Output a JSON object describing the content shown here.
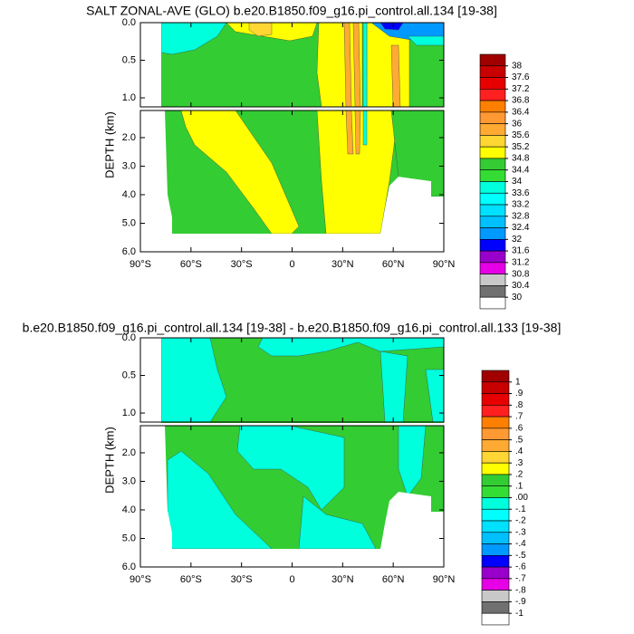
{
  "chart_data": [
    {
      "type": "contour",
      "title": "SALT ZONAL-AVE (GLO) b.e20.B1850.f09_g16.pi_control.all.134 [19-38]",
      "ylabel": "DEPTH (km)",
      "xlim": [
        -90,
        90
      ],
      "xticks": [
        {
          "value": -90,
          "label": "90°S"
        },
        {
          "value": -60,
          "label": "60°S"
        },
        {
          "value": -30,
          "label": "30°S"
        },
        0,
        {
          "value": 30,
          "label": "30°N"
        },
        {
          "value": 60,
          "label": "60°N"
        },
        {
          "value": 90,
          "label": "90°N"
        }
      ],
      "panels": [
        {
          "ylim": [
            0,
            1.12
          ],
          "yticks": [
            {
              "value": 0,
              "label": "0.0"
            },
            0.5,
            {
              "value": 1,
              "label": "1.0"
            }
          ]
        },
        {
          "ylim": [
            1.05,
            6
          ],
          "yticks": [
            {
              "value": 2,
              "label": "2.0"
            },
            {
              "value": 3,
              "label": "3.0"
            },
            {
              "value": 4,
              "label": "4.0"
            },
            {
              "value": 5,
              "label": "5.0"
            },
            {
              "value": 6,
              "label": "6.0"
            }
          ]
        }
      ],
      "levels": [
        38,
        37.6,
        37.2,
        36.8,
        36.4,
        36,
        35.6,
        35.2,
        34.8,
        34.4,
        34,
        33.6,
        33.2,
        32.8,
        32.4,
        32,
        31.6,
        31.2,
        30.8,
        30.4,
        30
      ],
      "colors": [
        "#a00000",
        "#c80000",
        "#e60000",
        "#ff2020",
        "#ff8000",
        "#ff9933",
        "#ffaa33",
        "#ffd633",
        "#ffff00",
        "#33cc33",
        "#33dd33",
        "#00ffdd",
        "#00ffff",
        "#00e0ff",
        "#00c0ff",
        "#0099ff",
        "#0000ff",
        "#9900cc",
        "#e600e6",
        "#c8c8c8",
        "#707070",
        "#ffffff"
      ]
    },
    {
      "type": "contour",
      "title": "b.e20.B1850.f09_g16.pi_control.all.134 [19-38] - b.e20.B1850.f09_g16.pi_control.all.133 [19-38]",
      "ylabel": "DEPTH (km)",
      "xlim": [
        -90,
        90
      ],
      "xticks": [
        {
          "value": -90,
          "label": "90°S"
        },
        {
          "value": -60,
          "label": "60°S"
        },
        {
          "value": -30,
          "label": "30°S"
        },
        0,
        {
          "value": 30,
          "label": "30°N"
        },
        {
          "value": 60,
          "label": "60°N"
        },
        {
          "value": 90,
          "label": "90°N"
        }
      ],
      "panels": [
        {
          "ylim": [
            0,
            1.12
          ],
          "yticks": [
            {
              "value": 0,
              "label": "0.0"
            },
            0.5,
            {
              "value": 1,
              "label": "1.0"
            }
          ]
        },
        {
          "ylim": [
            1.05,
            6
          ],
          "yticks": [
            {
              "value": 2,
              "label": "2.0"
            },
            {
              "value": 3,
              "label": "3.0"
            },
            {
              "value": 4,
              "label": "4.0"
            },
            {
              "value": 5,
              "label": "5.0"
            },
            {
              "value": 6,
              "label": "6.0"
            }
          ]
        }
      ],
      "levels": [
        1,
        {
          "value": 0.9,
          "label": ".9"
        },
        {
          "value": 0.8,
          "label": ".8"
        },
        {
          "value": 0.7,
          "label": ".7"
        },
        {
          "value": 0.6,
          "label": ".6"
        },
        {
          "value": 0.5,
          "label": ".5"
        },
        {
          "value": 0.4,
          "label": ".4"
        },
        {
          "value": 0.3,
          "label": ".3"
        },
        {
          "value": 0.2,
          "label": ".2"
        },
        {
          "value": 0.1,
          "label": ".1"
        },
        {
          "value": 0,
          "label": ".00"
        },
        {
          "value": -0.1,
          "label": "-.1"
        },
        {
          "value": -0.2,
          "label": "-.2"
        },
        {
          "value": -0.3,
          "label": "-.3"
        },
        {
          "value": -0.4,
          "label": "-.4"
        },
        {
          "value": -0.5,
          "label": "-.5"
        },
        {
          "value": -0.6,
          "label": "-.6"
        },
        {
          "value": -0.7,
          "label": "-.7"
        },
        {
          "value": -0.8,
          "label": "-.8"
        },
        {
          "value": -0.9,
          "label": "-.9"
        },
        -1
      ],
      "colors": [
        "#a00000",
        "#c80000",
        "#e60000",
        "#ff2020",
        "#ff8000",
        "#ff9933",
        "#ffaa33",
        "#ffd633",
        "#ffff00",
        "#33cc33",
        "#33dd33",
        "#00ffdd",
        "#00ffff",
        "#00e0ff",
        "#00c0ff",
        "#0099ff",
        "#0000ff",
        "#9900cc",
        "#e600e6",
        "#c8c8c8",
        "#707070",
        "#ffffff"
      ]
    }
  ]
}
